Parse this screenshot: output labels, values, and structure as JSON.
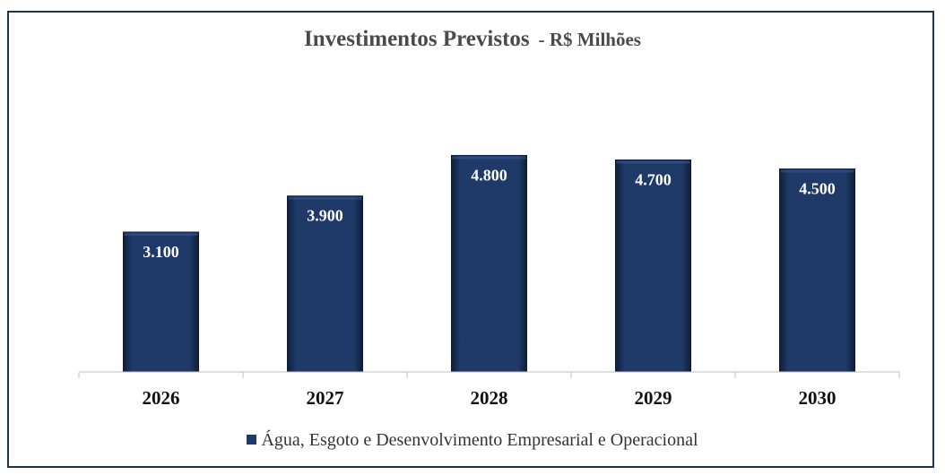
{
  "chart_data": {
    "type": "bar",
    "title": "Investimentos Previstos",
    "subtitle": "- R$ Milhões",
    "categories": [
      "2026",
      "2027",
      "2028",
      "2029",
      "2030"
    ],
    "series": [
      {
        "name": "Água, Esgoto e Desenvolvimento Empresarial e Operacional",
        "values": [
          3100,
          3900,
          4800,
          4700,
          4500
        ],
        "labels": [
          "3.100",
          "3.900",
          "4.800",
          "4.700",
          "4.500"
        ],
        "color": "#1f3a68"
      }
    ],
    "xlabel": "",
    "ylabel": "",
    "ylim": [
      0,
      5500
    ],
    "grid": false,
    "legend": "bottom"
  }
}
